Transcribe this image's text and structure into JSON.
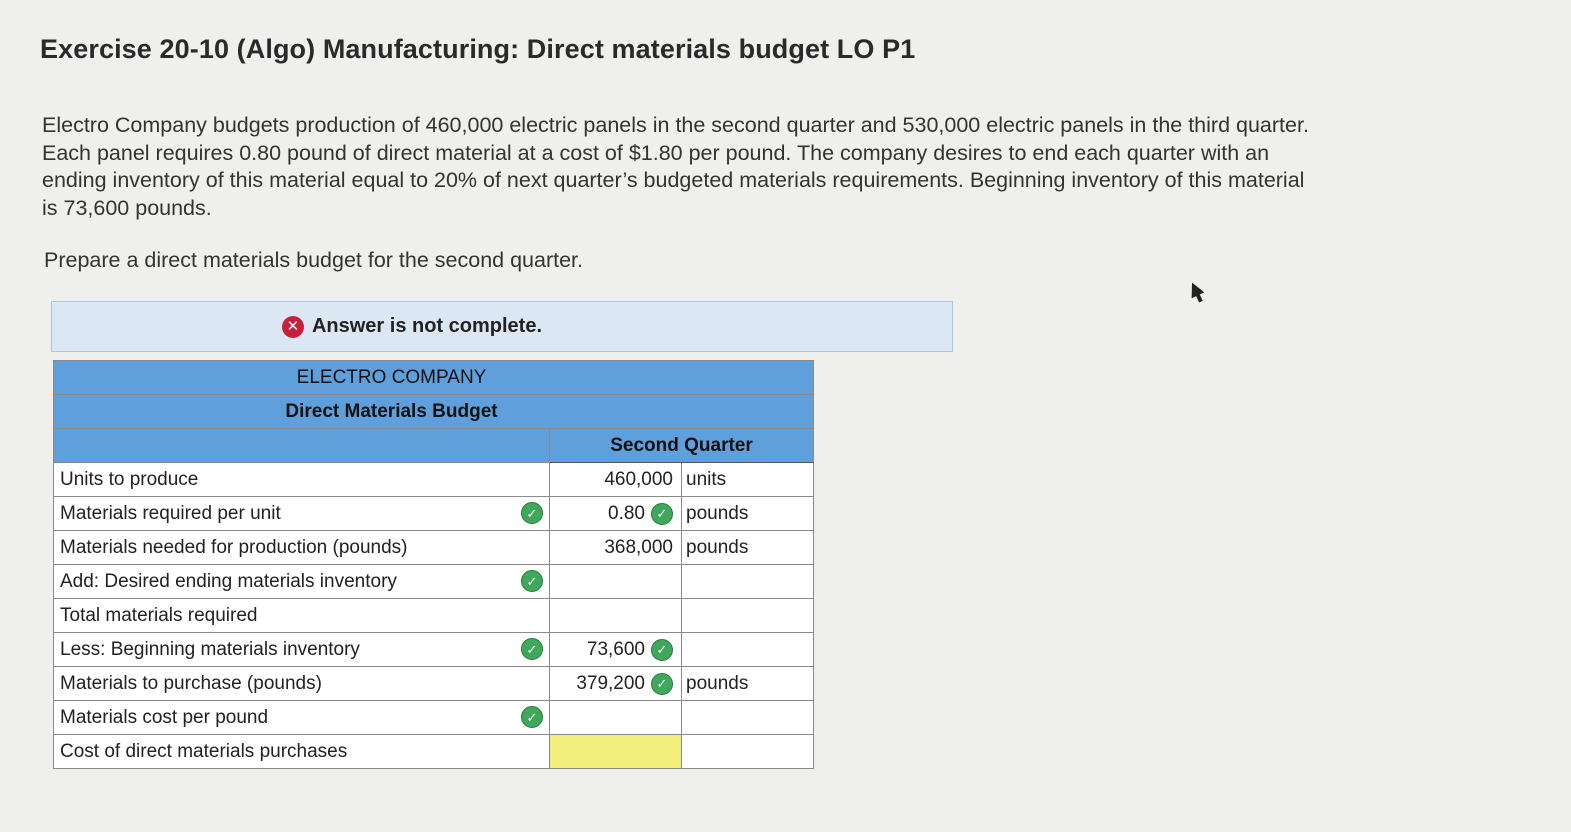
{
  "title": "Exercise 20-10 (Algo) Manufacturing: Direct materials budget LO P1",
  "paragraph_lines": [
    "Electro Company budgets production of 460,000 electric panels in the second quarter and 530,000 electric panels in the third quarter.",
    "Each panel requires 0.80 pound of direct material at a cost of $1.80 per pound. The company desires to end each quarter with an",
    "ending inventory of this material equal to 20% of next quarter’s budgeted materials requirements. Beginning inventory of this material",
    "is 73,600 pounds."
  ],
  "prompt": "Prepare a direct materials budget for the second quarter.",
  "banner": {
    "text": "Answer is not complete.",
    "icon": "x-circle-icon",
    "color": "#c8203b"
  },
  "budget": {
    "company": "ELECTRO COMPANY",
    "subtitle": "Direct Materials Budget",
    "column_header": "Second Quarter",
    "rows": [
      {
        "label": "Units to produce",
        "value": "460,000",
        "unit": "units",
        "row_check": false,
        "value_check": false
      },
      {
        "label": "Materials required per unit",
        "value": "0.80",
        "unit": "pounds",
        "row_check": true,
        "value_check": true
      },
      {
        "label": "Materials needed for production (pounds)",
        "value": "368,000",
        "unit": "pounds",
        "row_check": false,
        "value_check": false
      },
      {
        "label": "Add: Desired ending materials inventory",
        "value": "",
        "unit": "",
        "row_check": true,
        "value_check": false
      },
      {
        "label": "Total materials required",
        "value": "",
        "unit": "",
        "row_check": false,
        "value_check": false
      },
      {
        "label": "Less: Beginning materials inventory",
        "value": "73,600",
        "unit": "",
        "row_check": true,
        "value_check": true
      },
      {
        "label": "Materials to purchase (pounds)",
        "value": "379,200",
        "unit": "pounds",
        "row_check": false,
        "value_check": true
      },
      {
        "label": "Materials cost per pound",
        "value": "",
        "unit": "",
        "row_check": true,
        "value_check": false
      },
      {
        "label": "Cost of direct materials purchases",
        "value": "",
        "unit": "",
        "row_check": false,
        "value_check": false,
        "highlight": true
      }
    ]
  },
  "colors": {
    "header_blue": "#5fa0dc",
    "banner_bg": "#dbe8f3",
    "check_green": "#3fa85a",
    "highlight_yellow": "#f2ef7c"
  }
}
